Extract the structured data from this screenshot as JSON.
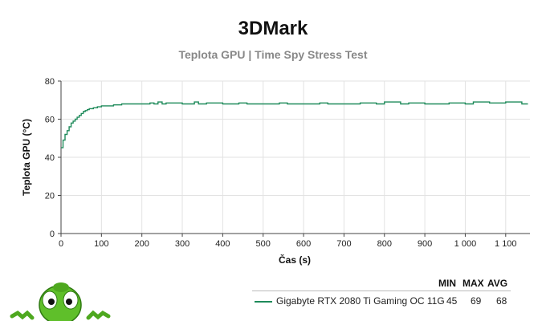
{
  "title": "3DMark",
  "subtitle": "Teplota GPU | Time Spy Stress Test",
  "colors": {
    "series": "#1e8a5a",
    "grid": "#e2e2e2",
    "axis": "#444444",
    "mascot": "#5fbf2a"
  },
  "mascot_icon": "green-alien-mascot-icon",
  "chart_data": {
    "type": "line",
    "title": "",
    "xlabel": "Čas (s)",
    "ylabel": "Teplota GPU (°C)",
    "xlim": [
      0,
      1160
    ],
    "ylim": [
      0,
      80
    ],
    "x_ticks": [
      0,
      100,
      200,
      300,
      400,
      500,
      600,
      700,
      800,
      900,
      1000,
      1100
    ],
    "x_tick_labels": [
      "0",
      "100",
      "200",
      "300",
      "400",
      "500",
      "600",
      "700",
      "800",
      "900",
      "1 000",
      "1 100"
    ],
    "y_ticks": [
      0,
      20,
      40,
      60,
      80
    ],
    "y_tick_labels": [
      "0",
      "20",
      "40",
      "60",
      "80"
    ],
    "grid": true,
    "legend_position": "bottom-right",
    "series": [
      {
        "name": "Gigabyte RTX 2080 Ti Gaming OC 11G",
        "x": [
          0,
          5,
          10,
          15,
          20,
          25,
          30,
          35,
          40,
          45,
          50,
          55,
          60,
          65,
          70,
          80,
          90,
          100,
          110,
          120,
          130,
          140,
          150,
          200,
          220,
          230,
          240,
          250,
          260,
          300,
          330,
          340,
          360,
          400,
          440,
          460,
          500,
          540,
          560,
          600,
          640,
          660,
          700,
          740,
          780,
          800,
          840,
          860,
          900,
          960,
          1000,
          1020,
          1060,
          1100,
          1140,
          1155
        ],
        "y": [
          45,
          49,
          52,
          54,
          56,
          58,
          59,
          60,
          61,
          62,
          63,
          64,
          64.5,
          65,
          65.5,
          66,
          66.5,
          67,
          67,
          67,
          67.5,
          67.5,
          68,
          68,
          68.5,
          68,
          69,
          68,
          68.5,
          68,
          69,
          68,
          68.5,
          68,
          68.5,
          68,
          68,
          68.5,
          68,
          68,
          68.5,
          68,
          68,
          68.5,
          68,
          69,
          68,
          68.5,
          68,
          68.5,
          68,
          69,
          68.5,
          69,
          68,
          68
        ]
      }
    ]
  },
  "legend": {
    "headers": {
      "min": "MIN",
      "max": "MAX",
      "avg": "AVG"
    },
    "rows": [
      {
        "name": "Gigabyte RTX 2080 Ti Gaming OC 11G",
        "min": "45",
        "max": "69",
        "avg": "68"
      }
    ]
  }
}
